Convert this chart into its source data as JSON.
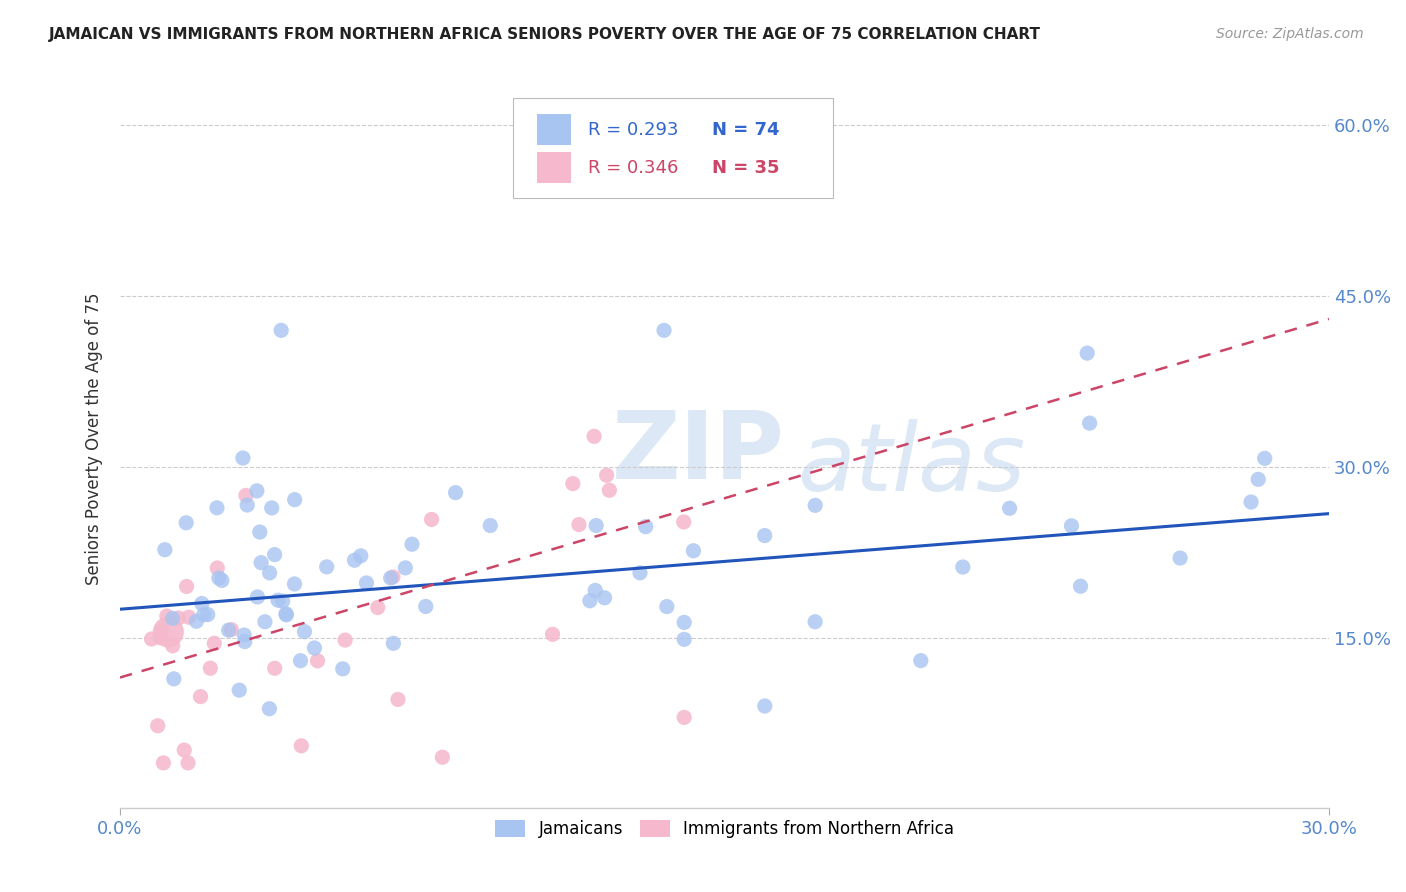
{
  "title": "JAMAICAN VS IMMIGRANTS FROM NORTHERN AFRICA SENIORS POVERTY OVER THE AGE OF 75 CORRELATION CHART",
  "source": "Source: ZipAtlas.com",
  "ylabel": "Seniors Poverty Over the Age of 75",
  "y_ticks": [
    0.0,
    0.15,
    0.3,
    0.45,
    0.6
  ],
  "y_tick_labels": [
    "",
    "15.0%",
    "30.0%",
    "45.0%",
    "60.0%"
  ],
  "x_lim": [
    0.0,
    0.3
  ],
  "y_lim": [
    0.0,
    0.65
  ],
  "color_jamaican": "#a8c4f0",
  "color_northern_africa": "#f5b8cc",
  "color_trend_jamaican": "#2255bb",
  "color_trend_northern_africa": "#cc4466",
  "watermark_zip": "ZIP",
  "watermark_atlas": "atlas",
  "bg_color": "#ffffff",
  "grid_color": "#cccccc",
  "jam_slope": 0.28,
  "jam_intercept": 0.175,
  "na_slope": 1.05,
  "na_intercept": 0.115
}
